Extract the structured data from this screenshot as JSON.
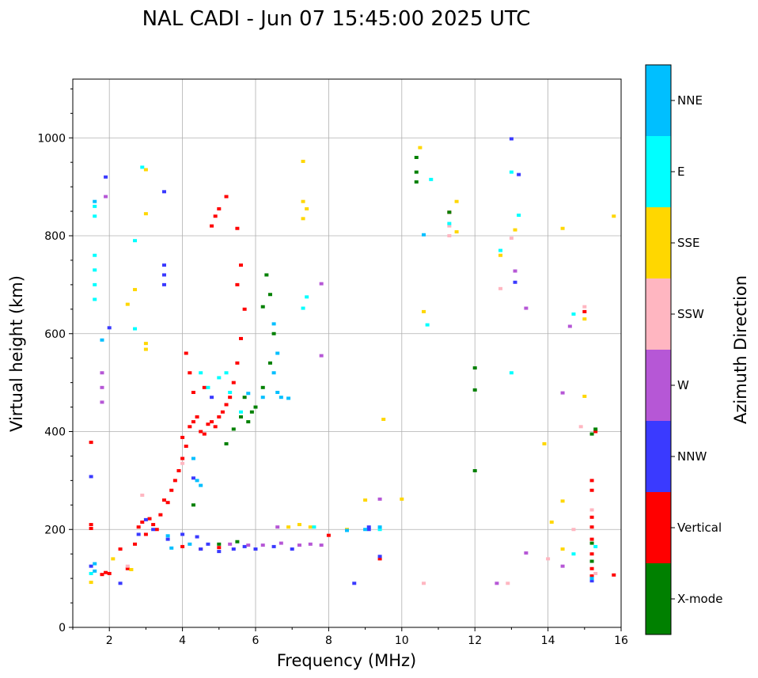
{
  "chart_data": {
    "type": "scatter",
    "title": "NAL CADI - Jun 07 15:45:00 2025 UTC",
    "xlabel": "Frequency (MHz)",
    "ylabel": "Virtual height (km)",
    "xlim": [
      1,
      16
    ],
    "ylim": [
      0,
      1120
    ],
    "xticks": [
      2,
      4,
      6,
      8,
      10,
      12,
      14,
      16
    ],
    "yticks": [
      0,
      200,
      400,
      600,
      800,
      1000
    ],
    "grid": true,
    "colorbar": {
      "label": "Azimuth Direction",
      "categories": [
        {
          "name": "X-mode",
          "color": "#008000"
        },
        {
          "name": "Vertical",
          "color": "#ff0000"
        },
        {
          "name": "NNW",
          "color": "#3a3aff"
        },
        {
          "name": "W",
          "color": "#b657d6"
        },
        {
          "name": "SSW",
          "color": "#ffb6c1"
        },
        {
          "name": "SSE",
          "color": "#ffd700"
        },
        {
          "name": "E",
          "color": "#00ffff"
        },
        {
          "name": "NNE",
          "color": "#00bfff"
        }
      ]
    },
    "series": [
      {
        "name": "Vertical",
        "color": "#ff0000",
        "points": [
          [
            1.5,
            378
          ],
          [
            1.5,
            210
          ],
          [
            1.5,
            202
          ],
          [
            1.8,
            108
          ],
          [
            1.9,
            112
          ],
          [
            2.0,
            110
          ],
          [
            2.3,
            160
          ],
          [
            2.5,
            120
          ],
          [
            2.7,
            170
          ],
          [
            2.8,
            205
          ],
          [
            2.9,
            215
          ],
          [
            3.0,
            190
          ],
          [
            3.1,
            222
          ],
          [
            3.2,
            210
          ],
          [
            3.3,
            200
          ],
          [
            3.4,
            230
          ],
          [
            3.5,
            260
          ],
          [
            3.6,
            255
          ],
          [
            3.7,
            280
          ],
          [
            3.8,
            300
          ],
          [
            3.9,
            320
          ],
          [
            4.0,
            345
          ],
          [
            4.0,
            388
          ],
          [
            4.1,
            370
          ],
          [
            4.2,
            410
          ],
          [
            4.3,
            420
          ],
          [
            4.4,
            430
          ],
          [
            4.5,
            400
          ],
          [
            4.6,
            395
          ],
          [
            4.7,
            415
          ],
          [
            4.8,
            420
          ],
          [
            4.9,
            410
          ],
          [
            5.0,
            430
          ],
          [
            5.1,
            440
          ],
          [
            5.2,
            455
          ],
          [
            5.3,
            470
          ],
          [
            5.4,
            500
          ],
          [
            5.5,
            540
          ],
          [
            5.6,
            590
          ],
          [
            5.7,
            650
          ],
          [
            5.5,
            700
          ],
          [
            5.6,
            740
          ],
          [
            4.1,
            560
          ],
          [
            4.2,
            520
          ],
          [
            4.3,
            480
          ],
          [
            4.6,
            490
          ],
          [
            4.9,
            840
          ],
          [
            4.8,
            820
          ],
          [
            5.0,
            855
          ],
          [
            5.2,
            880
          ],
          [
            5.5,
            815
          ],
          [
            4.0,
            165
          ],
          [
            4.5,
            160
          ],
          [
            5.0,
            163
          ],
          [
            8.0,
            188
          ],
          [
            9.4,
            140
          ],
          [
            11.3,
            848
          ],
          [
            15.0,
            645
          ],
          [
            15.2,
            300
          ],
          [
            15.2,
            280
          ],
          [
            15.2,
            225
          ],
          [
            15.2,
            205
          ],
          [
            15.2,
            180
          ],
          [
            15.2,
            150
          ],
          [
            15.2,
            120
          ],
          [
            15.2,
            105
          ],
          [
            15.3,
            400
          ],
          [
            15.8,
            107
          ]
        ]
      },
      {
        "name": "X-mode",
        "color": "#008000",
        "points": [
          [
            4.3,
            250
          ],
          [
            5.2,
            375
          ],
          [
            5.4,
            405
          ],
          [
            5.6,
            430
          ],
          [
            5.8,
            420
          ],
          [
            6.0,
            450
          ],
          [
            6.2,
            490
          ],
          [
            6.4,
            540
          ],
          [
            6.5,
            600
          ],
          [
            6.4,
            680
          ],
          [
            6.3,
            720
          ],
          [
            6.2,
            655
          ],
          [
            5.7,
            470
          ],
          [
            5.9,
            440
          ],
          [
            5.0,
            170
          ],
          [
            5.5,
            175
          ],
          [
            10.4,
            910
          ],
          [
            10.4,
            930
          ],
          [
            10.4,
            960
          ],
          [
            11.3,
            848
          ],
          [
            12.0,
            530
          ],
          [
            12.0,
            485
          ],
          [
            12.0,
            320
          ],
          [
            15.2,
            395
          ],
          [
            15.2,
            172
          ],
          [
            15.2,
            135
          ],
          [
            15.3,
            405
          ]
        ]
      },
      {
        "name": "NNW",
        "color": "#3a3aff",
        "points": [
          [
            1.5,
            308
          ],
          [
            1.5,
            125
          ],
          [
            1.9,
            920
          ],
          [
            2.0,
            612
          ],
          [
            2.3,
            90
          ],
          [
            3.5,
            890
          ],
          [
            3.5,
            740
          ],
          [
            3.5,
            720
          ],
          [
            3.5,
            700
          ],
          [
            2.8,
            190
          ],
          [
            3.0,
            220
          ],
          [
            3.2,
            200
          ],
          [
            3.6,
            180
          ],
          [
            4.0,
            190
          ],
          [
            4.4,
            185
          ],
          [
            4.7,
            170
          ],
          [
            4.5,
            160
          ],
          [
            5.0,
            155
          ],
          [
            5.4,
            160
          ],
          [
            5.7,
            165
          ],
          [
            6.0,
            160
          ],
          [
            6.5,
            165
          ],
          [
            7.0,
            160
          ],
          [
            4.3,
            305
          ],
          [
            4.8,
            470
          ],
          [
            8.7,
            90
          ],
          [
            9.1,
            200
          ],
          [
            9.1,
            205
          ],
          [
            9.4,
            145
          ],
          [
            13.0,
            998
          ],
          [
            13.2,
            925
          ],
          [
            13.1,
            705
          ],
          [
            15.2,
            95
          ]
        ]
      },
      {
        "name": "W",
        "color": "#b657d6",
        "points": [
          [
            1.8,
            520
          ],
          [
            1.8,
            490
          ],
          [
            1.8,
            460
          ],
          [
            1.9,
            880
          ],
          [
            5.3,
            170
          ],
          [
            5.8,
            168
          ],
          [
            6.2,
            168
          ],
          [
            6.7,
            172
          ],
          [
            7.2,
            168
          ],
          [
            7.5,
            170
          ],
          [
            7.8,
            168
          ],
          [
            6.6,
            205
          ],
          [
            7.8,
            555
          ],
          [
            7.8,
            702
          ],
          [
            9.4,
            262
          ],
          [
            13.1,
            728
          ],
          [
            13.4,
            652
          ],
          [
            14.4,
            479
          ],
          [
            14.6,
            615
          ],
          [
            13.4,
            152
          ],
          [
            14.4,
            125
          ],
          [
            12.6,
            90
          ]
        ]
      },
      {
        "name": "SSW",
        "color": "#ffb6c1",
        "points": [
          [
            2.5,
            125
          ],
          [
            2.9,
            270
          ],
          [
            4.0,
            335
          ],
          [
            8.5,
            198
          ],
          [
            10.6,
            90
          ],
          [
            11.3,
            800
          ],
          [
            11.3,
            820
          ],
          [
            12.7,
            692
          ],
          [
            12.9,
            90
          ],
          [
            13.0,
            795
          ],
          [
            14.0,
            140
          ],
          [
            14.7,
            200
          ],
          [
            14.9,
            410
          ],
          [
            15.0,
            655
          ],
          [
            15.2,
            240
          ],
          [
            15.3,
            110
          ]
        ]
      },
      {
        "name": "SSE",
        "color": "#ffd700",
        "points": [
          [
            1.5,
            92
          ],
          [
            2.1,
            140
          ],
          [
            2.6,
            118
          ],
          [
            2.5,
            660
          ],
          [
            3.0,
            935
          ],
          [
            3.0,
            845
          ],
          [
            3.0,
            580
          ],
          [
            3.0,
            568
          ],
          [
            2.7,
            690
          ],
          [
            7.3,
            952
          ],
          [
            7.3,
            870
          ],
          [
            7.3,
            835
          ],
          [
            7.4,
            855
          ],
          [
            6.9,
            205
          ],
          [
            7.2,
            210
          ],
          [
            7.5,
            205
          ],
          [
            8.5,
            200
          ],
          [
            9.0,
            260
          ],
          [
            9.5,
            425
          ],
          [
            10.0,
            262
          ],
          [
            10.5,
            980
          ],
          [
            10.6,
            645
          ],
          [
            11.5,
            870
          ],
          [
            11.5,
            808
          ],
          [
            12.7,
            760
          ],
          [
            13.1,
            812
          ],
          [
            13.9,
            375
          ],
          [
            14.1,
            215
          ],
          [
            14.4,
            815
          ],
          [
            14.4,
            258
          ],
          [
            14.4,
            160
          ],
          [
            15.0,
            630
          ],
          [
            15.0,
            472
          ],
          [
            15.8,
            840
          ]
        ]
      },
      {
        "name": "E",
        "color": "#00ffff",
        "points": [
          [
            1.6,
            860
          ],
          [
            1.6,
            840
          ],
          [
            1.6,
            760
          ],
          [
            1.6,
            730
          ],
          [
            1.6,
            700
          ],
          [
            1.6,
            670
          ],
          [
            1.5,
            110
          ],
          [
            2.7,
            790
          ],
          [
            2.7,
            610
          ],
          [
            2.9,
            940
          ],
          [
            4.5,
            520
          ],
          [
            4.7,
            490
          ],
          [
            5.0,
            510
          ],
          [
            5.3,
            480
          ],
          [
            5.6,
            440
          ],
          [
            5.2,
            520
          ],
          [
            7.3,
            652
          ],
          [
            7.4,
            675
          ],
          [
            7.6,
            205
          ],
          [
            9.4,
            200
          ],
          [
            10.8,
            915
          ],
          [
            10.7,
            618
          ],
          [
            11.3,
            825
          ],
          [
            12.7,
            770
          ],
          [
            13.0,
            520
          ],
          [
            13.0,
            930
          ],
          [
            13.2,
            842
          ],
          [
            14.7,
            640
          ],
          [
            14.7,
            150
          ],
          [
            15.3,
            165
          ]
        ]
      },
      {
        "name": "NNE",
        "color": "#00bfff",
        "points": [
          [
            1.6,
            870
          ],
          [
            1.6,
            130
          ],
          [
            1.6,
            115
          ],
          [
            1.8,
            587
          ],
          [
            3.6,
            187
          ],
          [
            3.7,
            162
          ],
          [
            4.2,
            170
          ],
          [
            4.4,
            300
          ],
          [
            4.5,
            290
          ],
          [
            4.3,
            345
          ],
          [
            5.8,
            478
          ],
          [
            6.2,
            470
          ],
          [
            6.5,
            520
          ],
          [
            6.6,
            480
          ],
          [
            6.7,
            470
          ],
          [
            6.6,
            560
          ],
          [
            6.5,
            620
          ],
          [
            6.9,
            468
          ],
          [
            10.6,
            802
          ],
          [
            8.5,
            198
          ],
          [
            9.0,
            200
          ],
          [
            9.4,
            205
          ],
          [
            15.2,
            100
          ]
        ]
      }
    ]
  }
}
